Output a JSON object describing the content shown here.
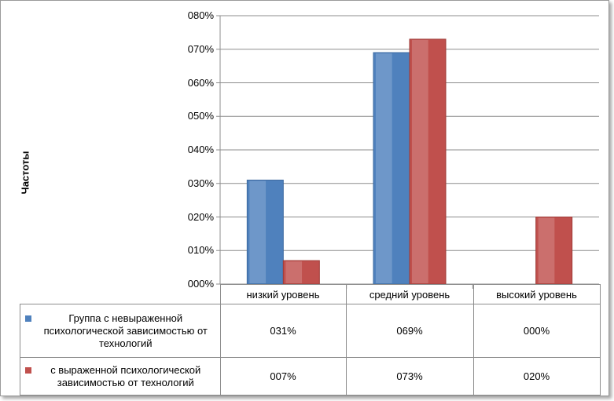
{
  "chart_data": {
    "type": "bar",
    "ylabel": "Частоты",
    "ylim": [
      0,
      0.8
    ],
    "yticks": [
      "000%",
      "010%",
      "020%",
      "030%",
      "040%",
      "050%",
      "060%",
      "070%",
      "080%"
    ],
    "categories": [
      "низкий уровень",
      "средний уровень",
      "высокий уровень"
    ],
    "series": [
      {
        "name": "Группа с невыраженной психологической зависимостью от технологий",
        "color": "#4f81bd",
        "values": [
          0.31,
          0.69,
          0.0
        ],
        "labels": [
          "031%",
          "069%",
          "000%"
        ]
      },
      {
        "name": "с выраженной психологической зависимостью от технологий",
        "color": "#c0504d",
        "values": [
          0.07,
          0.73,
          0.2
        ],
        "labels": [
          "007%",
          "073%",
          "020%"
        ]
      }
    ],
    "data_table": true,
    "grid": true,
    "legend": "data-table"
  }
}
